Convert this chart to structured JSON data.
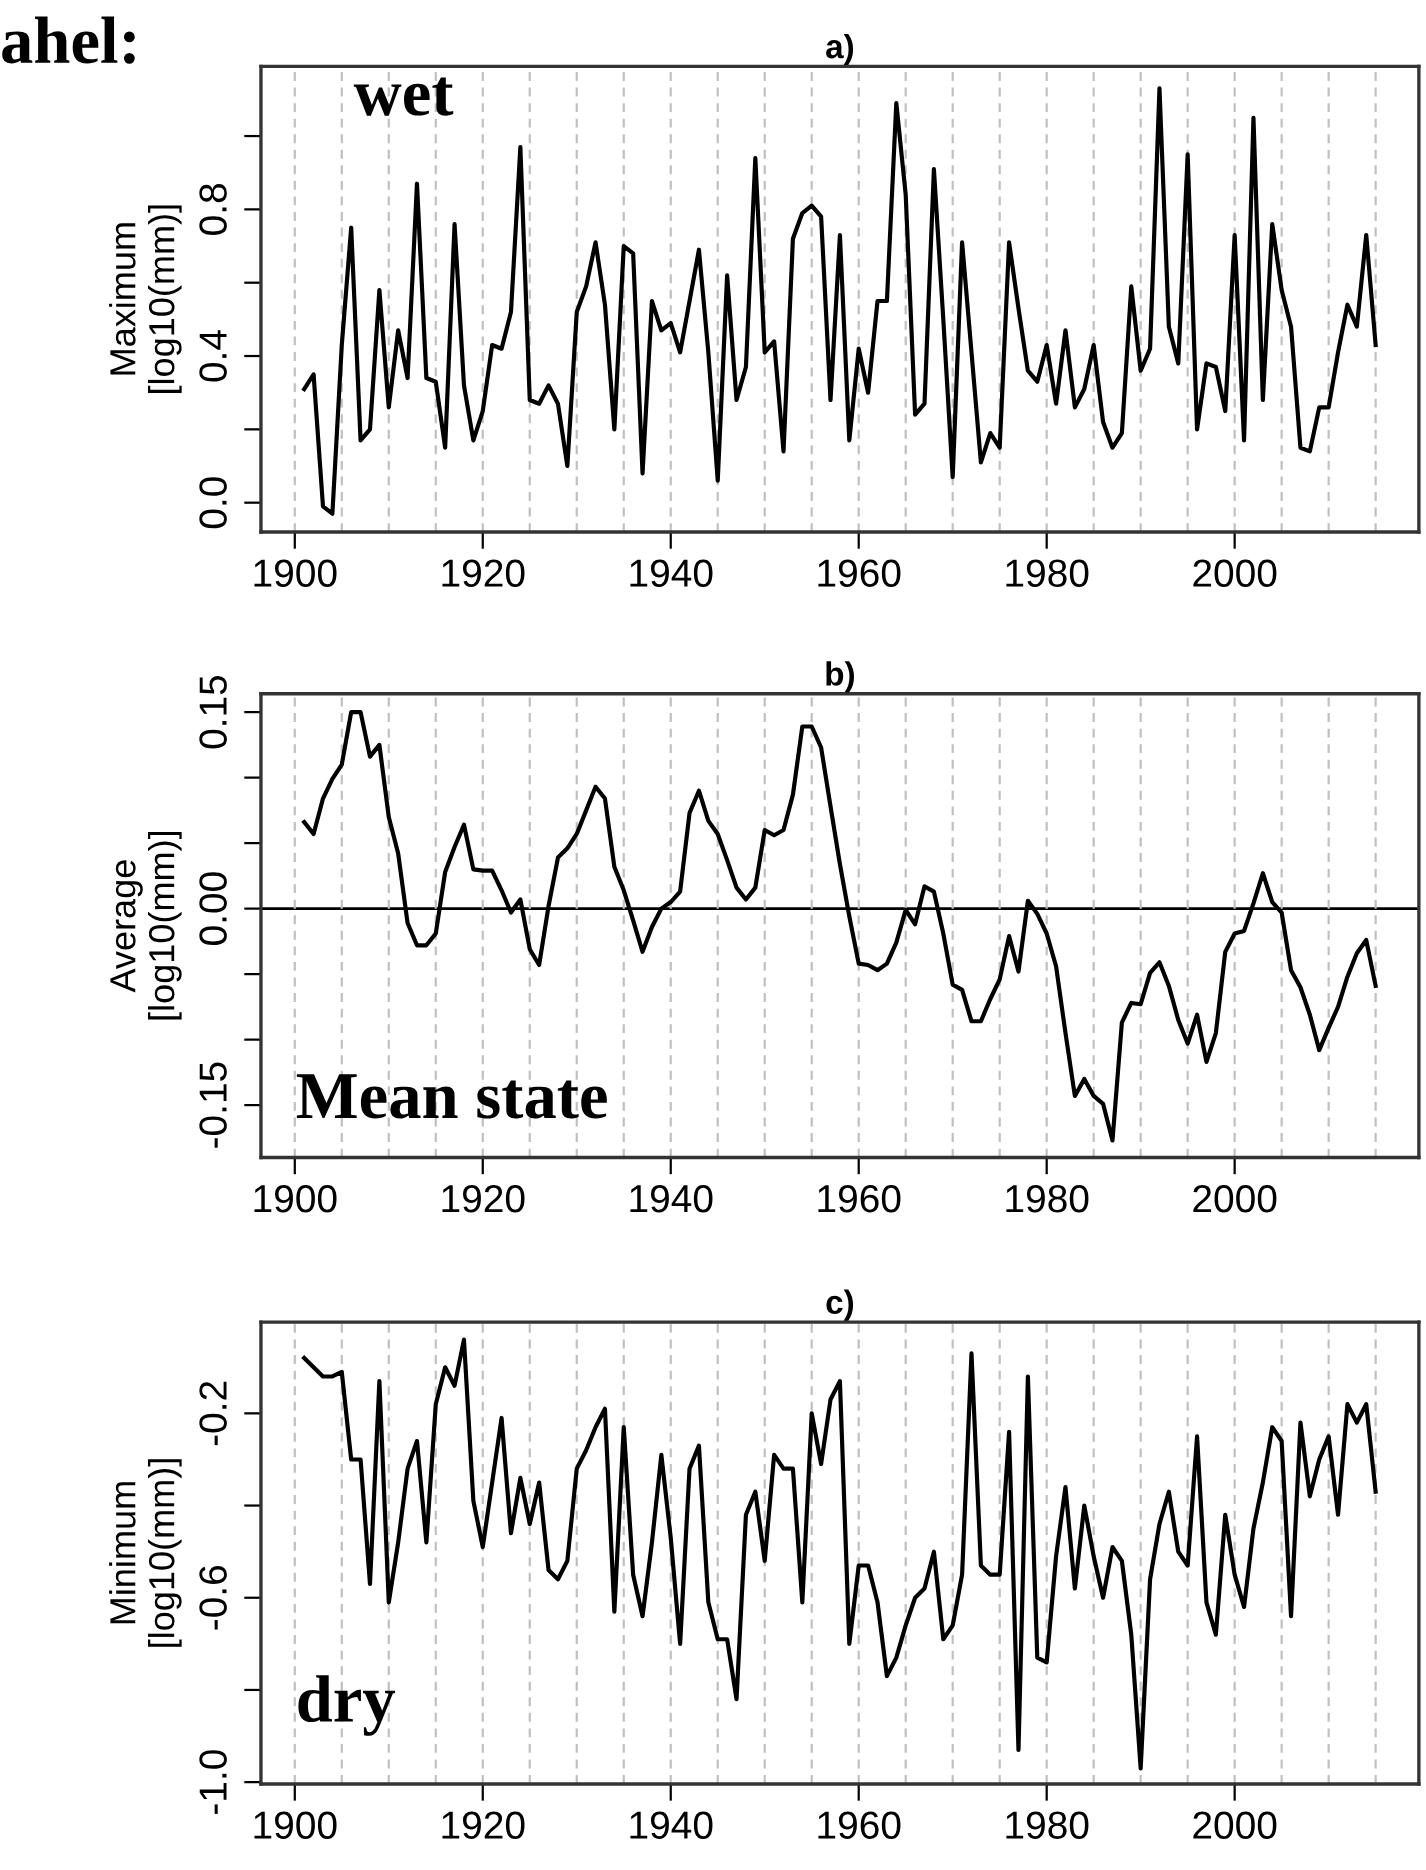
{
  "chart_data": [
    {
      "type": "line",
      "title": "a)",
      "ylabel": "Maximum\n[log10(mm)]",
      "annotations": [
        "ahel:",
        "wet"
      ],
      "color": "#000000",
      "x": [
        1901,
        1902,
        1903,
        1904,
        1905,
        1906,
        1907,
        1908,
        1909,
        1910,
        1911,
        1912,
        1913,
        1914,
        1915,
        1916,
        1917,
        1918,
        1919,
        1920,
        1921,
        1922,
        1923,
        1924,
        1925,
        1926,
        1927,
        1928,
        1929,
        1930,
        1931,
        1932,
        1933,
        1934,
        1935,
        1936,
        1937,
        1938,
        1939,
        1940,
        1941,
        1942,
        1943,
        1944,
        1945,
        1946,
        1947,
        1948,
        1949,
        1950,
        1951,
        1952,
        1953,
        1954,
        1955,
        1956,
        1957,
        1958,
        1959,
        1960,
        1961,
        1962,
        1963,
        1964,
        1965,
        1966,
        1967,
        1968,
        1969,
        1970,
        1971,
        1972,
        1973,
        1974,
        1975,
        1976,
        1977,
        1978,
        1979,
        1980,
        1981,
        1982,
        1983,
        1984,
        1985,
        1986,
        1987,
        1988,
        1989,
        1990,
        1991,
        1992,
        1993,
        1994,
        1995,
        1996,
        1997,
        1998,
        1999,
        2000,
        2001,
        2002,
        2003,
        2004,
        2005,
        2006,
        2007,
        2008,
        2009,
        2010,
        2011,
        2012,
        2013,
        2014,
        2015
      ],
      "values": [
        0.31,
        0.35,
        -0.01,
        -0.03,
        0.43,
        0.75,
        0.17,
        0.2,
        0.58,
        0.26,
        0.47,
        0.34,
        0.87,
        0.34,
        0.33,
        0.15,
        0.76,
        0.32,
        0.17,
        0.25,
        0.43,
        0.42,
        0.52,
        0.97,
        0.28,
        0.27,
        0.32,
        0.27,
        0.1,
        0.52,
        0.59,
        0.71,
        0.54,
        0.2,
        0.7,
        0.68,
        0.08,
        0.55,
        0.47,
        0.49,
        0.41,
        0.55,
        0.69,
        0.41,
        0.06,
        0.62,
        0.28,
        0.37,
        0.94,
        0.41,
        0.44,
        0.14,
        0.72,
        0.79,
        0.81,
        0.78,
        0.28,
        0.73,
        0.17,
        0.42,
        0.3,
        0.55,
        0.55,
        1.09,
        0.84,
        0.24,
        0.27,
        0.91,
        0.5,
        0.07,
        0.71,
        0.41,
        0.11,
        0.19,
        0.15,
        0.71,
        0.53,
        0.36,
        0.33,
        0.43,
        0.27,
        0.47,
        0.26,
        0.31,
        0.43,
        0.22,
        0.15,
        0.19,
        0.59,
        0.36,
        0.42,
        1.13,
        0.48,
        0.38,
        0.95,
        0.2,
        0.38,
        0.37,
        0.25,
        0.73,
        0.17,
        1.05,
        0.28,
        0.76,
        0.58,
        0.48,
        0.15,
        0.14,
        0.26,
        0.26,
        0.41,
        0.54,
        0.48,
        0.73,
        0.43
      ],
      "xlim": [
        1896.4,
        2019.6
      ],
      "xticks": [
        1900,
        1920,
        1940,
        1960,
        1980,
        2000
      ],
      "ylim": [
        -0.08,
        1.19
      ],
      "yticks": [
        {
          "value": 0,
          "label": "0.0"
        },
        {
          "value": 0.2,
          "label": null
        },
        {
          "value": 0.4,
          "label": "0.4"
        },
        {
          "value": 0.6,
          "label": null
        },
        {
          "value": 0.8,
          "label": "0.8"
        },
        {
          "value": 1.0,
          "label": null
        }
      ],
      "ref_lines": [
        {
          "axis": "x",
          "value": 1900,
          "color": "#c0c0c0",
          "line_style": "dashed"
        },
        {
          "axis": "x",
          "value": 1905,
          "color": "#c0c0c0",
          "line_style": "dashed"
        },
        {
          "axis": "x",
          "value": 1910,
          "color": "#c0c0c0",
          "line_style": "dashed"
        },
        {
          "axis": "x",
          "value": 1915,
          "color": "#c0c0c0",
          "line_style": "dashed"
        },
        {
          "axis": "x",
          "value": 1920,
          "color": "#c0c0c0",
          "line_style": "dashed"
        },
        {
          "axis": "x",
          "value": 1925,
          "color": "#c0c0c0",
          "line_style": "dashed"
        },
        {
          "axis": "x",
          "value": 1930,
          "color": "#c0c0c0",
          "line_style": "dashed"
        },
        {
          "axis": "x",
          "value": 1935,
          "color": "#c0c0c0",
          "line_style": "dashed"
        },
        {
          "axis": "x",
          "value": 1940,
          "color": "#c0c0c0",
          "line_style": "dashed"
        },
        {
          "axis": "x",
          "value": 1945,
          "color": "#c0c0c0",
          "line_style": "dashed"
        },
        {
          "axis": "x",
          "value": 1950,
          "color": "#c0c0c0",
          "line_style": "dashed"
        },
        {
          "axis": "x",
          "value": 1955,
          "color": "#c0c0c0",
          "line_style": "dashed"
        },
        {
          "axis": "x",
          "value": 1960,
          "color": "#c0c0c0",
          "line_style": "dashed"
        },
        {
          "axis": "x",
          "value": 1965,
          "color": "#c0c0c0",
          "line_style": "dashed"
        },
        {
          "axis": "x",
          "value": 1970,
          "color": "#c0c0c0",
          "line_style": "dashed"
        },
        {
          "axis": "x",
          "value": 1975,
          "color": "#c0c0c0",
          "line_style": "dashed"
        },
        {
          "axis": "x",
          "value": 1980,
          "color": "#c0c0c0",
          "line_style": "dashed"
        },
        {
          "axis": "x",
          "value": 1985,
          "color": "#c0c0c0",
          "line_style": "dashed"
        },
        {
          "axis": "x",
          "value": 1990,
          "color": "#c0c0c0",
          "line_style": "dashed"
        },
        {
          "axis": "x",
          "value": 1995,
          "color": "#c0c0c0",
          "line_style": "dashed"
        },
        {
          "axis": "x",
          "value": 2000,
          "color": "#c0c0c0",
          "line_style": "dashed"
        },
        {
          "axis": "x",
          "value": 2005,
          "color": "#c0c0c0",
          "line_style": "dashed"
        },
        {
          "axis": "x",
          "value": 2010,
          "color": "#c0c0c0",
          "line_style": "dashed"
        },
        {
          "axis": "x",
          "value": 2015,
          "color": "#c0c0c0",
          "line_style": "dashed"
        }
      ]
    },
    {
      "type": "line",
      "title": "b)",
      "ylabel": "Average\n[log10(mm)]",
      "annotations": [
        "Mean state"
      ],
      "color": "#000000",
      "x": [
        1901,
        1902,
        1903,
        1904,
        1905,
        1906,
        1907,
        1908,
        1909,
        1910,
        1911,
        1912,
        1913,
        1914,
        1915,
        1916,
        1917,
        1918,
        1919,
        1920,
        1921,
        1922,
        1923,
        1924,
        1925,
        1926,
        1927,
        1928,
        1929,
        1930,
        1931,
        1932,
        1933,
        1934,
        1935,
        1936,
        1937,
        1938,
        1939,
        1940,
        1941,
        1942,
        1943,
        1944,
        1945,
        1946,
        1947,
        1948,
        1949,
        1950,
        1951,
        1952,
        1953,
        1954,
        1955,
        1956,
        1957,
        1958,
        1959,
        1960,
        1961,
        1962,
        1963,
        1964,
        1965,
        1966,
        1967,
        1968,
        1969,
        1970,
        1971,
        1972,
        1973,
        1974,
        1975,
        1976,
        1977,
        1978,
        1979,
        1980,
        1981,
        1982,
        1983,
        1984,
        1985,
        1986,
        1987,
        1988,
        1989,
        1990,
        1991,
        1992,
        1993,
        1994,
        1995,
        1996,
        1997,
        1998,
        1999,
        2000,
        2001,
        2002,
        2003,
        2004,
        2005,
        2006,
        2007,
        2008,
        2009,
        2010,
        2011,
        2012,
        2013,
        2014,
        2015
      ],
      "values": [
        0.066,
        0.057,
        0.084,
        0.099,
        0.11,
        0.15,
        0.15,
        0.116,
        0.125,
        0.07,
        0.042,
        -0.011,
        -0.028,
        -0.028,
        -0.019,
        0.028,
        0.047,
        0.064,
        0.03,
        0.029,
        0.029,
        0.014,
        -0.003,
        0.007,
        -0.031,
        -0.043,
        0.002,
        0.039,
        0.046,
        0.057,
        0.075,
        0.093,
        0.084,
        0.032,
        0.014,
        -0.009,
        -0.033,
        -0.014,
        0.0,
        0.005,
        0.013,
        0.073,
        0.09,
        0.067,
        0.057,
        0.037,
        0.016,
        0.007,
        0.016,
        0.06,
        0.056,
        0.06,
        0.087,
        0.139,
        0.139,
        0.123,
        0.078,
        0.034,
        -0.006,
        -0.042,
        -0.043,
        -0.047,
        -0.042,
        -0.026,
        -0.001,
        -0.012,
        0.017,
        0.013,
        -0.019,
        -0.058,
        -0.062,
        -0.086,
        -0.086,
        -0.069,
        -0.054,
        -0.021,
        -0.048,
        0.006,
        -0.004,
        -0.019,
        -0.044,
        -0.095,
        -0.143,
        -0.13,
        -0.143,
        -0.149,
        -0.177,
        -0.087,
        -0.072,
        -0.073,
        -0.049,
        -0.041,
        -0.059,
        -0.085,
        -0.103,
        -0.081,
        -0.117,
        -0.095,
        -0.033,
        -0.019,
        -0.017,
        0.004,
        0.027,
        0.005,
        -0.003,
        -0.047,
        -0.06,
        -0.081,
        -0.108,
        -0.091,
        -0.075,
        -0.052,
        -0.034,
        -0.024,
        -0.059
      ],
      "xlim": [
        1896.4,
        2019.6
      ],
      "xticks": [
        1900,
        1920,
        1940,
        1960,
        1980,
        2000
      ],
      "ylim": [
        -0.19,
        0.164
      ],
      "yticks": [
        {
          "value": -0.15,
          "label": "-0.15"
        },
        {
          "value": -0.1,
          "label": null
        },
        {
          "value": -0.05,
          "label": null
        },
        {
          "value": 0,
          "label": "0.00"
        },
        {
          "value": 0.05,
          "label": null
        },
        {
          "value": 0.1,
          "label": null
        },
        {
          "value": 0.15,
          "label": "0.15"
        }
      ],
      "ref_lines": [
        {
          "axis": "y",
          "value": 0,
          "color": "#000000",
          "line_style": "solid"
        },
        {
          "axis": "x",
          "value": 1900,
          "color": "#c0c0c0",
          "line_style": "dashed"
        },
        {
          "axis": "x",
          "value": 1905,
          "color": "#c0c0c0",
          "line_style": "dashed"
        },
        {
          "axis": "x",
          "value": 1910,
          "color": "#c0c0c0",
          "line_style": "dashed"
        },
        {
          "axis": "x",
          "value": 1915,
          "color": "#c0c0c0",
          "line_style": "dashed"
        },
        {
          "axis": "x",
          "value": 1920,
          "color": "#c0c0c0",
          "line_style": "dashed"
        },
        {
          "axis": "x",
          "value": 1925,
          "color": "#c0c0c0",
          "line_style": "dashed"
        },
        {
          "axis": "x",
          "value": 1930,
          "color": "#c0c0c0",
          "line_style": "dashed"
        },
        {
          "axis": "x",
          "value": 1935,
          "color": "#c0c0c0",
          "line_style": "dashed"
        },
        {
          "axis": "x",
          "value": 1940,
          "color": "#c0c0c0",
          "line_style": "dashed"
        },
        {
          "axis": "x",
          "value": 1945,
          "color": "#c0c0c0",
          "line_style": "dashed"
        },
        {
          "axis": "x",
          "value": 1950,
          "color": "#c0c0c0",
          "line_style": "dashed"
        },
        {
          "axis": "x",
          "value": 1955,
          "color": "#c0c0c0",
          "line_style": "dashed"
        },
        {
          "axis": "x",
          "value": 1960,
          "color": "#c0c0c0",
          "line_style": "dashed"
        },
        {
          "axis": "x",
          "value": 1965,
          "color": "#c0c0c0",
          "line_style": "dashed"
        },
        {
          "axis": "x",
          "value": 1970,
          "color": "#c0c0c0",
          "line_style": "dashed"
        },
        {
          "axis": "x",
          "value": 1975,
          "color": "#c0c0c0",
          "line_style": "dashed"
        },
        {
          "axis": "x",
          "value": 1980,
          "color": "#c0c0c0",
          "line_style": "dashed"
        },
        {
          "axis": "x",
          "value": 1985,
          "color": "#c0c0c0",
          "line_style": "dashed"
        },
        {
          "axis": "x",
          "value": 1990,
          "color": "#c0c0c0",
          "line_style": "dashed"
        },
        {
          "axis": "x",
          "value": 1995,
          "color": "#c0c0c0",
          "line_style": "dashed"
        },
        {
          "axis": "x",
          "value": 2000,
          "color": "#c0c0c0",
          "line_style": "dashed"
        },
        {
          "axis": "x",
          "value": 2005,
          "color": "#c0c0c0",
          "line_style": "dashed"
        },
        {
          "axis": "x",
          "value": 2010,
          "color": "#c0c0c0",
          "line_style": "dashed"
        },
        {
          "axis": "x",
          "value": 2015,
          "color": "#c0c0c0",
          "line_style": "dashed"
        }
      ]
    },
    {
      "type": "line",
      "title": "c)",
      "ylabel": "Minimum\n[log10(mm)]",
      "annotations": [
        "dry"
      ],
      "color": "#000000",
      "x": [
        1901,
        1902,
        1903,
        1904,
        1905,
        1906,
        1907,
        1908,
        1909,
        1910,
        1911,
        1912,
        1913,
        1914,
        1915,
        1916,
        1917,
        1918,
        1919,
        1920,
        1921,
        1922,
        1923,
        1924,
        1925,
        1926,
        1927,
        1928,
        1929,
        1930,
        1931,
        1932,
        1933,
        1934,
        1935,
        1936,
        1937,
        1938,
        1939,
        1940,
        1941,
        1942,
        1943,
        1944,
        1945,
        1946,
        1947,
        1948,
        1949,
        1950,
        1951,
        1952,
        1953,
        1954,
        1955,
        1956,
        1957,
        1958,
        1959,
        1960,
        1961,
        1962,
        1963,
        1964,
        1965,
        1966,
        1967,
        1968,
        1969,
        1970,
        1971,
        1972,
        1973,
        1974,
        1975,
        1976,
        1977,
        1978,
        1979,
        1980,
        1981,
        1982,
        1983,
        1984,
        1985,
        1986,
        1987,
        1988,
        1989,
        1990,
        1991,
        1992,
        1993,
        1994,
        1995,
        1996,
        1997,
        1998,
        1999,
        2000,
        2001,
        2002,
        2003,
        2004,
        2005,
        2006,
        2007,
        2008,
        2009,
        2010,
        2011,
        2012,
        2013,
        2014,
        2015
      ],
      "values": [
        -0.08,
        -0.1,
        -0.12,
        -0.12,
        -0.11,
        -0.3,
        -0.3,
        -0.57,
        -0.13,
        -0.61,
        -0.48,
        -0.32,
        -0.26,
        -0.48,
        -0.18,
        -0.1,
        -0.14,
        -0.04,
        -0.39,
        -0.49,
        -0.35,
        -0.21,
        -0.46,
        -0.34,
        -0.44,
        -0.35,
        -0.54,
        -0.56,
        -0.52,
        -0.32,
        -0.28,
        -0.23,
        -0.19,
        -0.63,
        -0.23,
        -0.55,
        -0.64,
        -0.48,
        -0.29,
        -0.47,
        -0.7,
        -0.32,
        -0.27,
        -0.61,
        -0.69,
        -0.69,
        -0.82,
        -0.42,
        -0.37,
        -0.52,
        -0.29,
        -0.32,
        -0.32,
        -0.61,
        -0.2,
        -0.31,
        -0.17,
        -0.13,
        -0.7,
        -0.53,
        -0.53,
        -0.61,
        -0.77,
        -0.73,
        -0.66,
        -0.6,
        -0.58,
        -0.5,
        -0.69,
        -0.66,
        -0.55,
        -0.07,
        -0.53,
        -0.55,
        -0.55,
        -0.24,
        -0.93,
        -0.12,
        -0.73,
        -0.74,
        -0.51,
        -0.36,
        -0.58,
        -0.4,
        -0.51,
        -0.6,
        -0.49,
        -0.52,
        -0.68,
        -0.97,
        -0.56,
        -0.44,
        -0.37,
        -0.5,
        -0.53,
        -0.25,
        -0.61,
        -0.68,
        -0.42,
        -0.55,
        -0.62,
        -0.45,
        -0.35,
        -0.23,
        -0.26,
        -0.64,
        -0.22,
        -0.38,
        -0.3,
        -0.25,
        -0.42,
        -0.18,
        -0.22,
        -0.18,
        -0.37
      ],
      "xlim": [
        1896.4,
        2019.6
      ],
      "xticks": [
        1900,
        1920,
        1940,
        1960,
        1980,
        2000
      ],
      "ylim": [
        -1.004,
        -0.002
      ],
      "yticks": [
        {
          "value": -1.0,
          "label": "-1.0"
        },
        {
          "value": -0.8,
          "label": null
        },
        {
          "value": -0.6,
          "label": "-0.6"
        },
        {
          "value": -0.4,
          "label": null
        },
        {
          "value": -0.2,
          "label": "-0.2"
        }
      ],
      "ref_lines": [
        {
          "axis": "x",
          "value": 1900,
          "color": "#c0c0c0",
          "line_style": "dashed"
        },
        {
          "axis": "x",
          "value": 1905,
          "color": "#c0c0c0",
          "line_style": "dashed"
        },
        {
          "axis": "x",
          "value": 1910,
          "color": "#c0c0c0",
          "line_style": "dashed"
        },
        {
          "axis": "x",
          "value": 1915,
          "color": "#c0c0c0",
          "line_style": "dashed"
        },
        {
          "axis": "x",
          "value": 1920,
          "color": "#c0c0c0",
          "line_style": "dashed"
        },
        {
          "axis": "x",
          "value": 1925,
          "color": "#c0c0c0",
          "line_style": "dashed"
        },
        {
          "axis": "x",
          "value": 1930,
          "color": "#c0c0c0",
          "line_style": "dashed"
        },
        {
          "axis": "x",
          "value": 1935,
          "color": "#c0c0c0",
          "line_style": "dashed"
        },
        {
          "axis": "x",
          "value": 1940,
          "color": "#c0c0c0",
          "line_style": "dashed"
        },
        {
          "axis": "x",
          "value": 1945,
          "color": "#c0c0c0",
          "line_style": "dashed"
        },
        {
          "axis": "x",
          "value": 1950,
          "color": "#c0c0c0",
          "line_style": "dashed"
        },
        {
          "axis": "x",
          "value": 1955,
          "color": "#c0c0c0",
          "line_style": "dashed"
        },
        {
          "axis": "x",
          "value": 1960,
          "color": "#c0c0c0",
          "line_style": "dashed"
        },
        {
          "axis": "x",
          "value": 1965,
          "color": "#c0c0c0",
          "line_style": "dashed"
        },
        {
          "axis": "x",
          "value": 1970,
          "color": "#c0c0c0",
          "line_style": "dashed"
        },
        {
          "axis": "x",
          "value": 1975,
          "color": "#c0c0c0",
          "line_style": "dashed"
        },
        {
          "axis": "x",
          "value": 1980,
          "color": "#c0c0c0",
          "line_style": "dashed"
        },
        {
          "axis": "x",
          "value": 1985,
          "color": "#c0c0c0",
          "line_style": "dashed"
        },
        {
          "axis": "x",
          "value": 1990,
          "color": "#c0c0c0",
          "line_style": "dashed"
        },
        {
          "axis": "x",
          "value": 1995,
          "color": "#c0c0c0",
          "line_style": "dashed"
        },
        {
          "axis": "x",
          "value": 2000,
          "color": "#c0c0c0",
          "line_style": "dashed"
        },
        {
          "axis": "x",
          "value": 2005,
          "color": "#c0c0c0",
          "line_style": "dashed"
        },
        {
          "axis": "x",
          "value": 2010,
          "color": "#c0c0c0",
          "line_style": "dashed"
        },
        {
          "axis": "x",
          "value": 2015,
          "color": "#c0c0c0",
          "line_style": "dashed"
        }
      ]
    }
  ]
}
